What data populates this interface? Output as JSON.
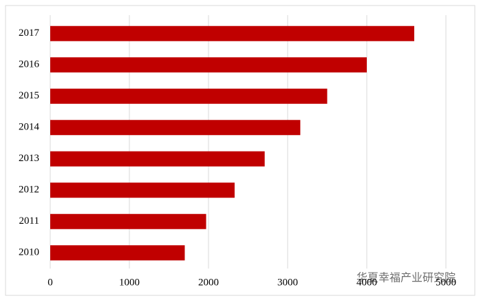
{
  "chart_data": {
    "type": "barh",
    "categories": [
      "2010",
      "2011",
      "2012",
      "2013",
      "2014",
      "2015",
      "2016",
      "2017"
    ],
    "values": [
      1700,
      1970,
      2330,
      2710,
      3160,
      3500,
      4000,
      4600
    ],
    "color": "#c00000",
    "xlim": [
      0,
      5000
    ],
    "xticks": [
      0,
      1000,
      2000,
      3000,
      4000,
      5000
    ],
    "grid": true,
    "annotation": "华夏幸福产业研究院"
  }
}
